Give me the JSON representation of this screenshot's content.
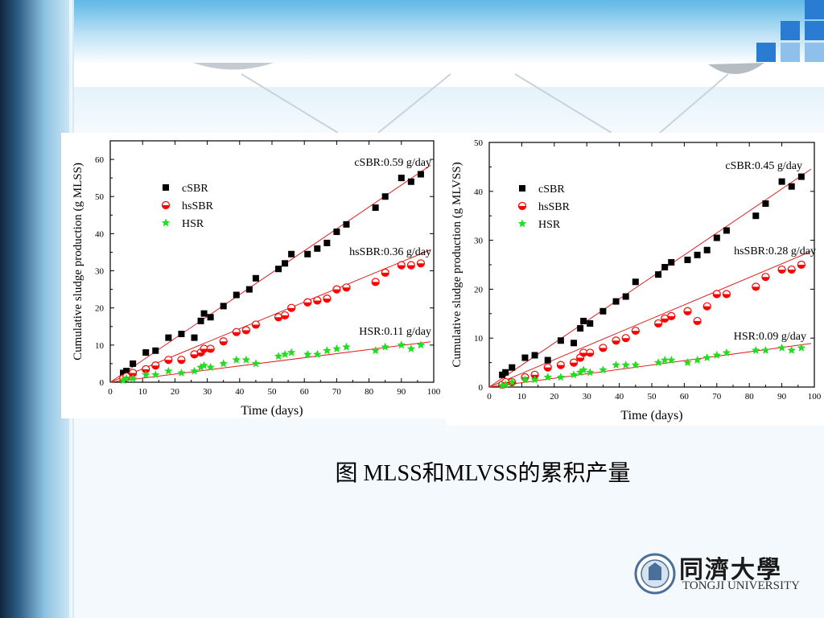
{
  "caption": "图 MLSS和MLVSS的累积产量",
  "logo": {
    "name_cn": "同濟大學",
    "name_en": "TONGJI UNIVERSITY"
  },
  "theme": {
    "dark_blue": "#1e3d5c",
    "sidebar_blue": "#6fa3c7",
    "header_blue": "#5bb4e0",
    "accent_squares": "#2a7cd3",
    "light_squares": "#8fc0ec"
  },
  "chart_data": [
    {
      "type": "scatter",
      "xlabel": "Time (days)",
      "ylabel": "Cumulative  sludge production (g MLSS)",
      "xlim": [
        0,
        100
      ],
      "ylim": [
        0,
        65
      ],
      "xticks": [
        0,
        10,
        20,
        30,
        40,
        50,
        60,
        70,
        80,
        90,
        100
      ],
      "yticks": [
        0,
        10,
        20,
        30,
        40,
        50,
        60
      ],
      "legend_position": "upper-left",
      "series": [
        {
          "name": "cSBR",
          "marker": "square",
          "color": "#000000",
          "x": [
            4,
            5,
            7,
            11,
            14,
            18,
            22,
            26,
            28,
            29,
            31,
            35,
            39,
            43,
            45,
            52,
            54,
            56,
            61,
            64,
            67,
            70,
            73,
            82,
            85,
            90,
            93,
            96
          ],
          "y": [
            2.5,
            3,
            5,
            8,
            8.5,
            12,
            13,
            12,
            16.5,
            18.5,
            17.5,
            20.5,
            23.5,
            25,
            28,
            30.5,
            32,
            34.5,
            34.5,
            36,
            37.5,
            40.5,
            42.5,
            47,
            50,
            55,
            54,
            56
          ]
        },
        {
          "name": "hsSBR",
          "marker": "half-circle",
          "color": "#ff0000",
          "x": [
            4,
            5,
            7,
            11,
            14,
            18,
            22,
            26,
            28,
            29,
            31,
            35,
            39,
            42,
            45,
            52,
            54,
            56,
            61,
            64,
            67,
            70,
            73,
            82,
            85,
            90,
            93,
            96
          ],
          "y": [
            1,
            1.5,
            2.5,
            3.5,
            4.5,
            6,
            6,
            7.5,
            8,
            9,
            9,
            11,
            13.5,
            14,
            15.5,
            17.5,
            18,
            20,
            21.5,
            22,
            22.5,
            25,
            25.5,
            27,
            29.5,
            31.5,
            31.5,
            32
          ]
        },
        {
          "name": "HSR",
          "marker": "star",
          "color": "#22dd22",
          "x": [
            4,
            5,
            7,
            11,
            14,
            18,
            22,
            26,
            28,
            29,
            31,
            35,
            39,
            42,
            45,
            52,
            54,
            56,
            61,
            64,
            67,
            70,
            73,
            82,
            85,
            90,
            93,
            96
          ],
          "y": [
            0.5,
            1,
            1,
            2,
            2,
            3,
            2.5,
            3,
            4,
            4.5,
            4,
            5,
            6,
            6,
            5,
            7,
            7.5,
            8,
            7.5,
            7.5,
            8.5,
            9,
            9.5,
            8.5,
            9.5,
            10,
            9,
            10
          ]
        }
      ],
      "fit_lines": [
        {
          "series": "cSBR",
          "slope": 0.59,
          "label": "cSBR:0.59 g/day",
          "color": "#e02020"
        },
        {
          "series": "hsSBR",
          "slope": 0.36,
          "label": "hsSBR:0.36 g/day",
          "color": "#e02020"
        },
        {
          "series": "HSR",
          "slope": 0.11,
          "label": "HSR:0.11 g/day",
          "color": "#e02020"
        }
      ]
    },
    {
      "type": "scatter",
      "xlabel": "Time (days)",
      "ylabel": "Cumulative  sludge production (g MLVSS)",
      "xlim": [
        0,
        100
      ],
      "ylim": [
        0,
        50
      ],
      "xticks": [
        0,
        10,
        20,
        30,
        40,
        50,
        60,
        70,
        80,
        90,
        100
      ],
      "yticks": [
        0,
        10,
        20,
        30,
        40,
        50
      ],
      "legend_position": "upper-left",
      "series": [
        {
          "name": "cSBR",
          "marker": "square",
          "color": "#000000",
          "x": [
            4,
            5,
            7,
            11,
            14,
            18,
            22,
            26,
            28,
            29,
            31,
            35,
            39,
            42,
            45,
            52,
            54,
            56,
            61,
            64,
            67,
            70,
            73,
            82,
            85,
            90,
            93,
            96
          ],
          "y": [
            2.5,
            3,
            4,
            6,
            6.5,
            5.5,
            9.5,
            9,
            12,
            13.5,
            13,
            15.5,
            17.5,
            18.5,
            21.5,
            23,
            24.5,
            25.5,
            26,
            27,
            28,
            30.5,
            32,
            35,
            37.5,
            42,
            41,
            43
          ]
        },
        {
          "name": "hsSBR",
          "marker": "half-circle",
          "color": "#ff0000",
          "x": [
            4,
            5,
            7,
            11,
            14,
            18,
            22,
            26,
            28,
            29,
            31,
            35,
            39,
            42,
            45,
            52,
            54,
            56,
            61,
            64,
            67,
            70,
            73,
            82,
            85,
            90,
            93,
            96
          ],
          "y": [
            0.5,
            1,
            1,
            2,
            2.5,
            4,
            4.5,
            5,
            6,
            7,
            7,
            8,
            9.5,
            10,
            11.5,
            13,
            14,
            14.5,
            15.5,
            13.5,
            16.5,
            19,
            19,
            20.5,
            22.5,
            24,
            24,
            25
          ]
        },
        {
          "name": "HSR",
          "marker": "star",
          "color": "#22dd22",
          "x": [
            4,
            5,
            7,
            11,
            14,
            18,
            22,
            26,
            28,
            29,
            31,
            35,
            39,
            42,
            45,
            52,
            54,
            56,
            61,
            64,
            67,
            70,
            73,
            82,
            85,
            90,
            93,
            96
          ],
          "y": [
            0.3,
            0.5,
            1,
            1.5,
            1.5,
            2,
            2,
            2.5,
            3,
            3.5,
            3,
            3.5,
            4.5,
            4.5,
            4.5,
            5,
            5.5,
            5.5,
            5,
            5.5,
            6,
            6.5,
            7,
            7.5,
            7.5,
            8,
            7.5,
            8
          ]
        }
      ],
      "fit_lines": [
        {
          "series": "cSBR",
          "slope": 0.45,
          "label": "cSBR:0.45 g/day",
          "color": "#e02020"
        },
        {
          "series": "hsSBR",
          "slope": 0.28,
          "label": "hsSBR:0.28 g/day",
          "color": "#e02020"
        },
        {
          "series": "HSR",
          "slope": 0.09,
          "label": "HSR:0.09 g/day",
          "color": "#e02020"
        }
      ]
    }
  ]
}
